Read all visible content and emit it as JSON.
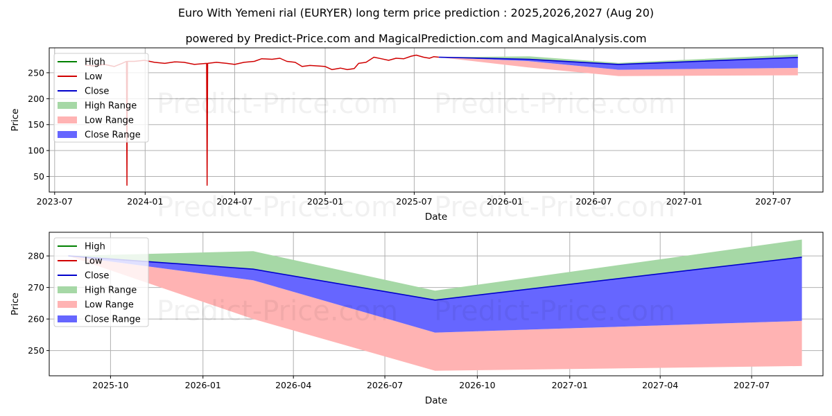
{
  "title": "Euro With Yemeni rial (EURYER) long term price prediction : 2025,2026,2027 (Aug 20)",
  "subtitle": "powered by Predict-Price.com and MagicalPrediction.com and MagicalAnalysis.com",
  "watermark": "Predict-Price.com",
  "colors": {
    "high": "#008000",
    "low": "#d00000",
    "close": "#0000cc",
    "high_range": "#a6d8a6",
    "low_range": "#ffb3b3",
    "close_range": "#6666ff"
  },
  "chart_data": [
    {
      "type": "line",
      "panel": "top",
      "xlabel": "Date",
      "ylabel": "Price",
      "x_ticks": [
        "2023-07",
        "2024-01",
        "2024-07",
        "2025-01",
        "2025-07",
        "2026-01",
        "2026-07",
        "2027-01",
        "2027-07"
      ],
      "y_ticks": [
        50,
        100,
        150,
        200,
        250
      ],
      "ylim": [
        20,
        298
      ],
      "xlim": [
        "2023-06-20",
        "2027-10-10"
      ],
      "grid": true,
      "legend": "top-left",
      "legend_entries": [
        "High",
        "Low",
        "Close",
        "High Range",
        "Low Range",
        "Close Range"
      ],
      "history": {
        "name": "Low",
        "points": [
          [
            "2023-09-01",
            265
          ],
          [
            "2023-09-20",
            263
          ],
          [
            "2023-10-10",
            266
          ],
          [
            "2023-10-30",
            262
          ],
          [
            "2023-11-15",
            268
          ],
          [
            "2023-11-24",
            272
          ],
          [
            "2023-11-25",
            33
          ],
          [
            "2023-11-26",
            272
          ],
          [
            "2023-12-10",
            272
          ],
          [
            "2023-12-31",
            274
          ],
          [
            "2024-01-20",
            270
          ],
          [
            "2024-02-10",
            268
          ],
          [
            "2024-03-01",
            271
          ],
          [
            "2024-03-20",
            270
          ],
          [
            "2024-04-10",
            266
          ],
          [
            "2024-05-05",
            268
          ],
          [
            "2024-05-06",
            33
          ],
          [
            "2024-05-07",
            268
          ],
          [
            "2024-05-25",
            270
          ],
          [
            "2024-06-15",
            268
          ],
          [
            "2024-07-01",
            266
          ],
          [
            "2024-07-20",
            270
          ],
          [
            "2024-08-10",
            272
          ],
          [
            "2024-08-25",
            277
          ],
          [
            "2024-09-15",
            276
          ],
          [
            "2024-10-01",
            278
          ],
          [
            "2024-10-15",
            272
          ],
          [
            "2024-11-01",
            270
          ],
          [
            "2024-11-15",
            262
          ],
          [
            "2024-12-01",
            264
          ],
          [
            "2024-12-20",
            263
          ],
          [
            "2025-01-01",
            262
          ],
          [
            "2025-01-15",
            256
          ],
          [
            "2025-02-01",
            259
          ],
          [
            "2025-02-15",
            256
          ],
          [
            "2025-03-01",
            258
          ],
          [
            "2025-03-10",
            268
          ],
          [
            "2025-03-25",
            270
          ],
          [
            "2025-04-10",
            280
          ],
          [
            "2025-04-25",
            277
          ],
          [
            "2025-05-10",
            274
          ],
          [
            "2025-05-25",
            278
          ],
          [
            "2025-06-10",
            277
          ],
          [
            "2025-06-25",
            282
          ],
          [
            "2025-07-05",
            284
          ],
          [
            "2025-07-20",
            280
          ],
          [
            "2025-08-01",
            278
          ],
          [
            "2025-08-10",
            281
          ],
          [
            "2025-08-20",
            280
          ]
        ]
      }
    },
    {
      "type": "area",
      "panel": "bottom",
      "xlabel": "Date",
      "ylabel": "Price",
      "x_ticks": [
        "2025-10",
        "2026-01",
        "2026-04",
        "2026-07",
        "2026-10",
        "2027-01",
        "2027-04",
        "2027-07"
      ],
      "y_ticks": [
        250,
        260,
        270,
        280
      ],
      "ylim": [
        242,
        287.5
      ],
      "xlim": [
        "2025-08-01",
        "2027-09-10"
      ],
      "grid": true,
      "legend": "top-left",
      "legend_entries": [
        "High",
        "Low",
        "Close",
        "High Range",
        "Low Range",
        "Close Range"
      ],
      "x": [
        "2025-08-20",
        "2026-02-20",
        "2026-08-20",
        "2027-08-20"
      ],
      "series": [
        {
          "name": "High Range",
          "upper": [
            280,
            281.5,
            269,
            285.2
          ],
          "lower": [
            280,
            275.8,
            266,
            279.6
          ]
        },
        {
          "name": "Low Range",
          "upper": [
            280,
            272.3,
            255.7,
            259.4
          ],
          "lower": [
            280,
            260,
            243.6,
            245.1
          ]
        },
        {
          "name": "Close Range",
          "upper": [
            280,
            275.8,
            266,
            279.6
          ],
          "lower": [
            280,
            272.3,
            255.7,
            259.4
          ]
        },
        {
          "name": "Close",
          "values": [
            280,
            275.8,
            266,
            279.6
          ]
        }
      ]
    }
  ]
}
